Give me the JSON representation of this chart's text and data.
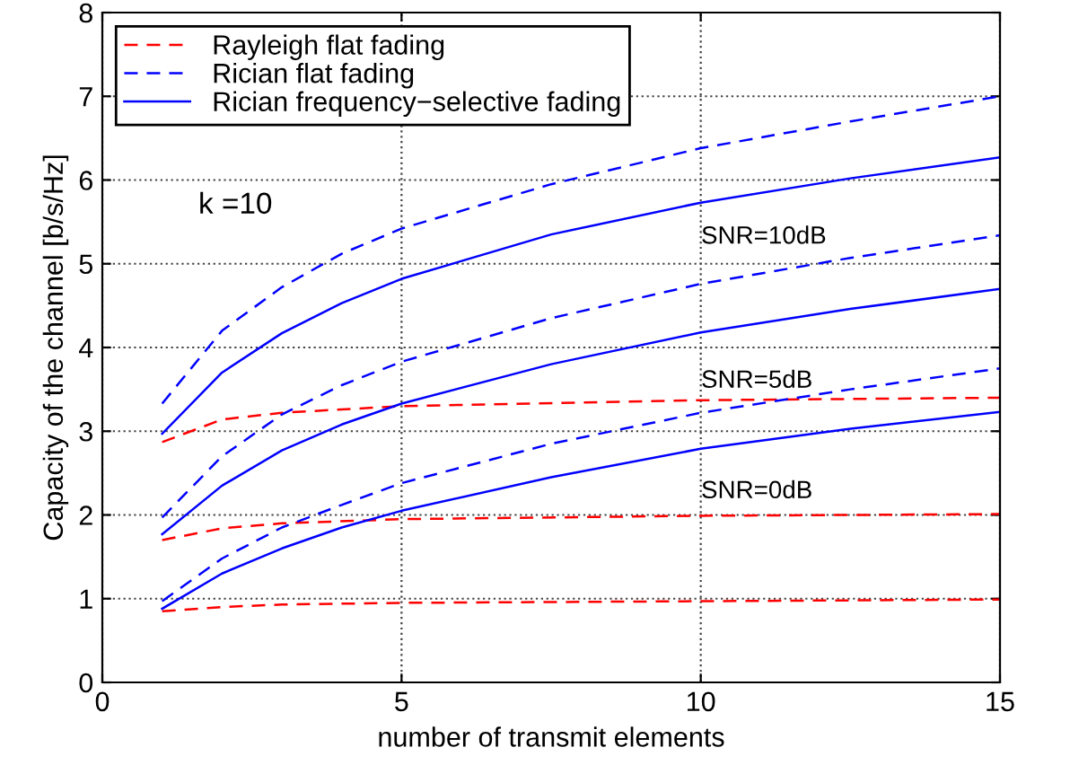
{
  "chart_data": {
    "type": "line",
    "xlabel": "number of transmit elements",
    "ylabel": "Capacity of the channel [b/s/Hz]",
    "xlim": [
      0,
      15
    ],
    "ylim": [
      0,
      8
    ],
    "xticks": [
      0,
      5,
      10,
      15
    ],
    "yticks": [
      0,
      1,
      2,
      3,
      4,
      5,
      6,
      7,
      8
    ],
    "grid": true,
    "legend": "top left",
    "marker": "none",
    "series": [
      {
        "name": "Rayleigh flat fading",
        "color": "#ff0000",
        "line_style": "dashed",
        "x": [
          1,
          2,
          3,
          5,
          10,
          15
        ],
        "values": [
          2.87,
          3.14,
          3.22,
          3.3,
          3.37,
          3.4
        ]
      },
      {
        "name": "Rician flat fading",
        "color": "#0000ff",
        "line_style": "dashed",
        "x": [
          1,
          2,
          3,
          4,
          5,
          7.5,
          10,
          12.5,
          15
        ],
        "values": [
          3.33,
          4.2,
          4.72,
          5.12,
          5.42,
          5.95,
          6.38,
          6.7,
          7.0
        ]
      },
      {
        "name": "Rician frequency−selective fading",
        "color": "#0000ff",
        "line_style": "solid",
        "x": [
          1,
          2,
          3,
          4,
          5,
          7.5,
          10,
          12.5,
          15
        ],
        "values": [
          2.97,
          3.7,
          4.17,
          4.53,
          4.82,
          5.35,
          5.73,
          6.02,
          6.27
        ]
      },
      {
        "color": "#ff0000",
        "line_style": "dashed",
        "x": [
          1,
          2,
          3,
          5,
          10,
          15
        ],
        "values": [
          1.7,
          1.84,
          1.9,
          1.95,
          1.99,
          2.01
        ]
      },
      {
        "color": "#0000ff",
        "line_style": "dashed",
        "x": [
          1,
          2,
          3,
          4,
          5,
          7.5,
          10,
          12.5,
          15
        ],
        "values": [
          1.97,
          2.7,
          3.2,
          3.55,
          3.83,
          4.35,
          4.76,
          5.07,
          5.34
        ]
      },
      {
        "color": "#0000ff",
        "line_style": "solid",
        "x": [
          1,
          2,
          3,
          4,
          5,
          7.5,
          10,
          12.5,
          15
        ],
        "values": [
          1.77,
          2.35,
          2.77,
          3.08,
          3.33,
          3.8,
          4.18,
          4.46,
          4.7
        ]
      },
      {
        "color": "#ff0000",
        "line_style": "dashed",
        "x": [
          1,
          2,
          3,
          5,
          10,
          15
        ],
        "values": [
          0.85,
          0.9,
          0.93,
          0.95,
          0.97,
          0.99
        ]
      },
      {
        "color": "#0000ff",
        "line_style": "dashed",
        "x": [
          1,
          2,
          3,
          4,
          5,
          7.5,
          10,
          12.5,
          15
        ],
        "values": [
          0.97,
          1.48,
          1.85,
          2.12,
          2.38,
          2.85,
          3.22,
          3.5,
          3.75
        ]
      },
      {
        "color": "#0000ff",
        "line_style": "solid",
        "x": [
          1,
          2,
          3,
          4,
          5,
          7.5,
          10,
          12.5,
          15
        ],
        "values": [
          0.88,
          1.3,
          1.6,
          1.85,
          2.05,
          2.45,
          2.79,
          3.03,
          3.23
        ]
      }
    ],
    "annotations": [
      "k =10",
      "SNR=10dB",
      "SNR=5dB",
      "SNR=0dB"
    ]
  }
}
